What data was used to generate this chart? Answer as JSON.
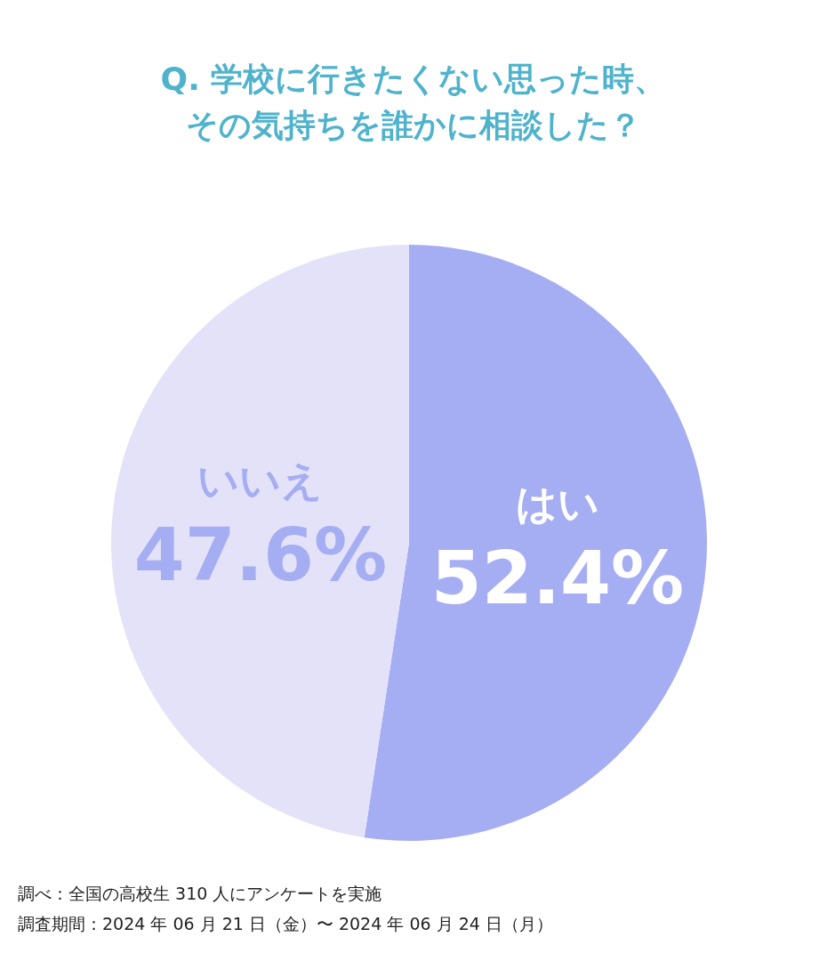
{
  "chart_data": {
    "type": "pie",
    "title": "Q. 学校に行きたくない思った時、その気持ちを誰かに相談した？",
    "categories": [
      "はい",
      "いいえ"
    ],
    "values": [
      52.4,
      47.6
    ],
    "colors": [
      "#a5aef2",
      "#e4e2f8"
    ],
    "value_labels": [
      "52.4%",
      "47.6%"
    ],
    "annotations": [
      "調べ：全国の高校生 310 人にアンケートを実施",
      "調査期間：2024 年 06 月 21 日（金）〜 2024 年 06 月 24 日（月）"
    ]
  }
}
